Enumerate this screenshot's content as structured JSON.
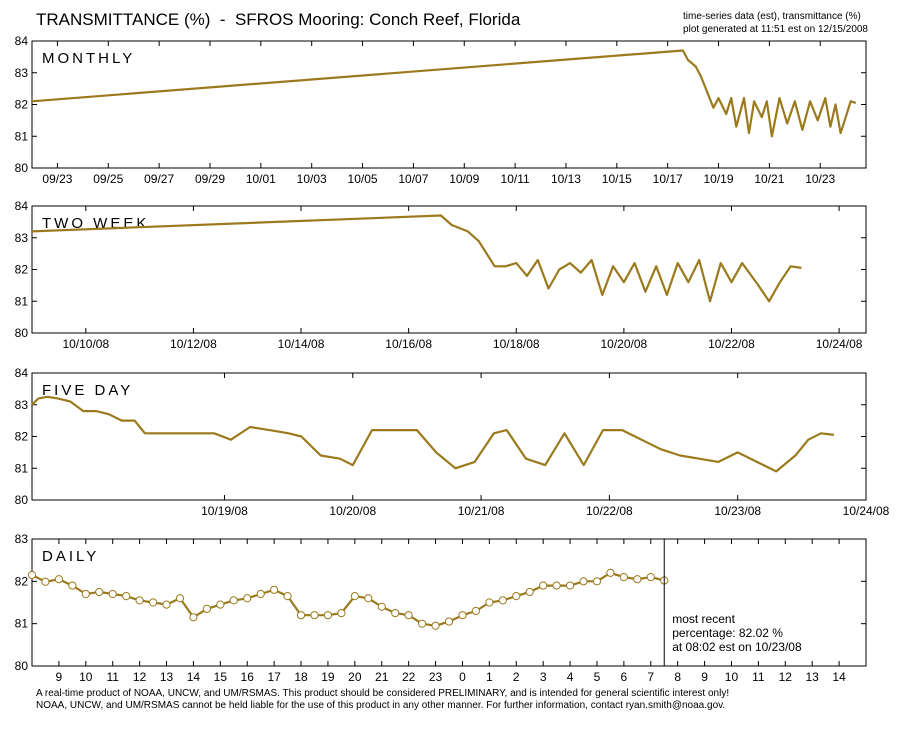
{
  "header": {
    "title": "TRANSMITTANCE (%)  -  SFROS Mooring: Conch Reef, Florida",
    "meta_line1": "time-series data (est), transmittance (%)",
    "meta_line2": "plot generated at 11:51 est on 12/15/2008"
  },
  "footer": {
    "line1": "A real-time product of NOAA, UNCW, and UM/RSMAS. This product should be considered PRELIMINARY, and is intended for general scientific interest only!",
    "line2": "NOAA, UNCW, and UM/RSMAS cannot be held liable for the use of this product in any other manner.  For further information, contact ryan.smith@noaa.gov."
  },
  "colors": {
    "series": "#9b7a1d",
    "axis": "#000000",
    "marker_fill": "#ffffff"
  },
  "chart_data": [
    {
      "type": "line",
      "label": "MONTHLY",
      "ylim": [
        80,
        84
      ],
      "yticks": [
        80,
        81,
        82,
        83,
        84
      ],
      "xlim": [
        0,
        32.8
      ],
      "xtick_positions": [
        1,
        3,
        5,
        7,
        9,
        11,
        13,
        15,
        17,
        19,
        21,
        23,
        25,
        27,
        29,
        31
      ],
      "xtick_labels": [
        "09/23",
        "09/25",
        "09/27",
        "09/29",
        "10/01",
        "10/03",
        "10/05",
        "10/07",
        "10/09",
        "10/11",
        "10/13",
        "10/15",
        "10/17",
        "10/19",
        "10/21",
        "10/23"
      ],
      "series": [
        {
          "x": [
            0,
            25.6,
            25.8,
            26.1,
            26.3,
            26.5,
            26.8,
            27.0,
            27.3,
            27.5,
            27.7,
            28.0,
            28.2,
            28.4,
            28.7,
            28.9,
            29.1,
            29.4,
            29.7,
            30.0,
            30.3,
            30.6,
            30.9,
            31.2,
            31.4,
            31.6,
            31.8,
            32.0,
            32.2,
            32.4
          ],
          "y": [
            82.1,
            83.7,
            83.4,
            83.2,
            82.9,
            82.5,
            81.9,
            82.2,
            81.7,
            82.2,
            81.3,
            82.2,
            81.1,
            82.1,
            81.6,
            82.1,
            81.0,
            82.2,
            81.4,
            82.1,
            81.2,
            82.1,
            81.5,
            82.2,
            81.3,
            82.0,
            81.1,
            81.6,
            82.1,
            82.05
          ]
        }
      ]
    },
    {
      "type": "line",
      "label": "TWO WEEK",
      "ylim": [
        80,
        84
      ],
      "yticks": [
        80,
        81,
        82,
        83,
        84
      ],
      "xlim": [
        0,
        15.5
      ],
      "xtick_positions": [
        1,
        3,
        5,
        7,
        9,
        11,
        13,
        15
      ],
      "xtick_labels": [
        "10/10/08",
        "10/12/08",
        "10/14/08",
        "10/16/08",
        "10/18/08",
        "10/20/08",
        "10/22/08",
        "10/24/08"
      ],
      "series": [
        {
          "x": [
            0,
            7.6,
            7.8,
            8.1,
            8.3,
            8.6,
            8.8,
            9.0,
            9.2,
            9.4,
            9.6,
            9.8,
            10.0,
            10.2,
            10.4,
            10.6,
            10.8,
            11.0,
            11.2,
            11.4,
            11.6,
            11.8,
            12.0,
            12.2,
            12.4,
            12.6,
            12.8,
            13.0,
            13.2,
            13.5,
            13.7,
            13.9,
            14.1,
            14.3
          ],
          "y": [
            83.2,
            83.7,
            83.4,
            83.2,
            82.9,
            82.1,
            82.1,
            82.2,
            81.8,
            82.3,
            81.4,
            82.0,
            82.2,
            81.9,
            82.3,
            81.2,
            82.1,
            81.6,
            82.2,
            81.3,
            82.1,
            81.2,
            82.2,
            81.6,
            82.3,
            81.0,
            82.2,
            81.6,
            82.2,
            81.5,
            81.0,
            81.6,
            82.1,
            82.05
          ]
        }
      ]
    },
    {
      "type": "line",
      "label": "FIVE DAY",
      "ylim": [
        80,
        84
      ],
      "yticks": [
        80,
        81,
        82,
        83,
        84
      ],
      "xlim": [
        0,
        6.5
      ],
      "xtick_positions": [
        1.5,
        2.5,
        3.5,
        4.5,
        5.5,
        6.5
      ],
      "xtick_labels": [
        "10/19/08",
        "10/20/08",
        "10/21/08",
        "10/22/08",
        "10/23/08",
        "10/24/08"
      ],
      "series": [
        {
          "x": [
            0,
            0.05,
            0.12,
            0.2,
            0.3,
            0.4,
            0.5,
            0.6,
            0.7,
            0.8,
            0.88,
            0.95,
            1.1,
            1.3,
            1.42,
            1.55,
            1.7,
            1.85,
            2.0,
            2.1,
            2.25,
            2.4,
            2.5,
            2.65,
            2.8,
            3.0,
            3.15,
            3.3,
            3.45,
            3.6,
            3.7,
            3.85,
            4.0,
            4.15,
            4.3,
            4.45,
            4.6,
            4.75,
            4.9,
            5.05,
            5.2,
            5.35,
            5.5,
            5.65,
            5.8,
            5.95,
            6.05,
            6.15,
            6.25
          ],
          "y": [
            83.0,
            83.2,
            83.25,
            83.2,
            83.1,
            82.8,
            82.8,
            82.7,
            82.5,
            82.5,
            82.1,
            82.1,
            82.1,
            82.1,
            82.1,
            81.9,
            82.3,
            82.2,
            82.1,
            82.0,
            81.4,
            81.3,
            81.1,
            82.2,
            82.2,
            82.2,
            81.5,
            81.0,
            81.2,
            82.1,
            82.2,
            81.3,
            81.1,
            82.1,
            81.1,
            82.2,
            82.2,
            81.9,
            81.6,
            81.4,
            81.3,
            81.2,
            81.5,
            81.2,
            80.9,
            81.4,
            81.9,
            82.1,
            82.05
          ]
        }
      ]
    },
    {
      "type": "line",
      "label": "DAILY",
      "ylim": [
        80,
        83
      ],
      "yticks": [
        80,
        81,
        82,
        83
      ],
      "xlim": [
        0,
        31
      ],
      "xtick_positions": [
        1,
        2,
        3,
        4,
        5,
        6,
        7,
        8,
        9,
        10,
        11,
        12,
        13,
        14,
        15,
        16,
        17,
        18,
        19,
        20,
        21,
        22,
        23,
        24,
        25,
        26,
        27,
        28,
        29,
        30
      ],
      "xtick_labels": [
        "9",
        "10",
        "11",
        "12",
        "13",
        "14",
        "15",
        "16",
        "17",
        "18",
        "19",
        "20",
        "21",
        "22",
        "23",
        "0",
        "1",
        "2",
        "3",
        "4",
        "5",
        "6",
        "7",
        "8",
        "9",
        "10",
        "11",
        "12",
        "13",
        "14"
      ],
      "series": [
        {
          "x": [
            0,
            0.5,
            1.0,
            1.5,
            2.0,
            2.5,
            3.0,
            3.5,
            4.0,
            4.5,
            5.0,
            5.5,
            6.0,
            6.5,
            7.0,
            7.5,
            8.0,
            8.5,
            9.0,
            9.5,
            10.0,
            10.5,
            11.0,
            11.5,
            12.0,
            12.5,
            13.0,
            13.5,
            14.0,
            14.5,
            15.0,
            15.5,
            16.0,
            16.5,
            17.0,
            17.5,
            18.0,
            18.5,
            19.0,
            19.5,
            20.0,
            20.5,
            21.0,
            21.5,
            22.0,
            22.5,
            23.0,
            23.5
          ],
          "y": [
            82.15,
            81.99,
            82.05,
            81.9,
            81.7,
            81.75,
            81.7,
            81.65,
            81.55,
            81.5,
            81.45,
            81.6,
            81.15,
            81.35,
            81.45,
            81.55,
            81.6,
            81.7,
            81.8,
            81.65,
            81.2,
            81.2,
            81.2,
            81.25,
            81.65,
            81.6,
            81.4,
            81.25,
            81.2,
            81.0,
            80.95,
            81.05,
            81.2,
            81.3,
            81.5,
            81.55,
            81.65,
            81.75,
            81.9,
            81.9,
            81.9,
            82.0,
            82.0,
            82.2,
            82.1,
            82.05,
            82.1,
            82.02
          ]
        }
      ],
      "most_recent": {
        "line1": "most recent",
        "line2": "percentage: 82.02 %",
        "line3": "at 08:02 est on 10/23/08",
        "x": 23.5
      }
    }
  ]
}
